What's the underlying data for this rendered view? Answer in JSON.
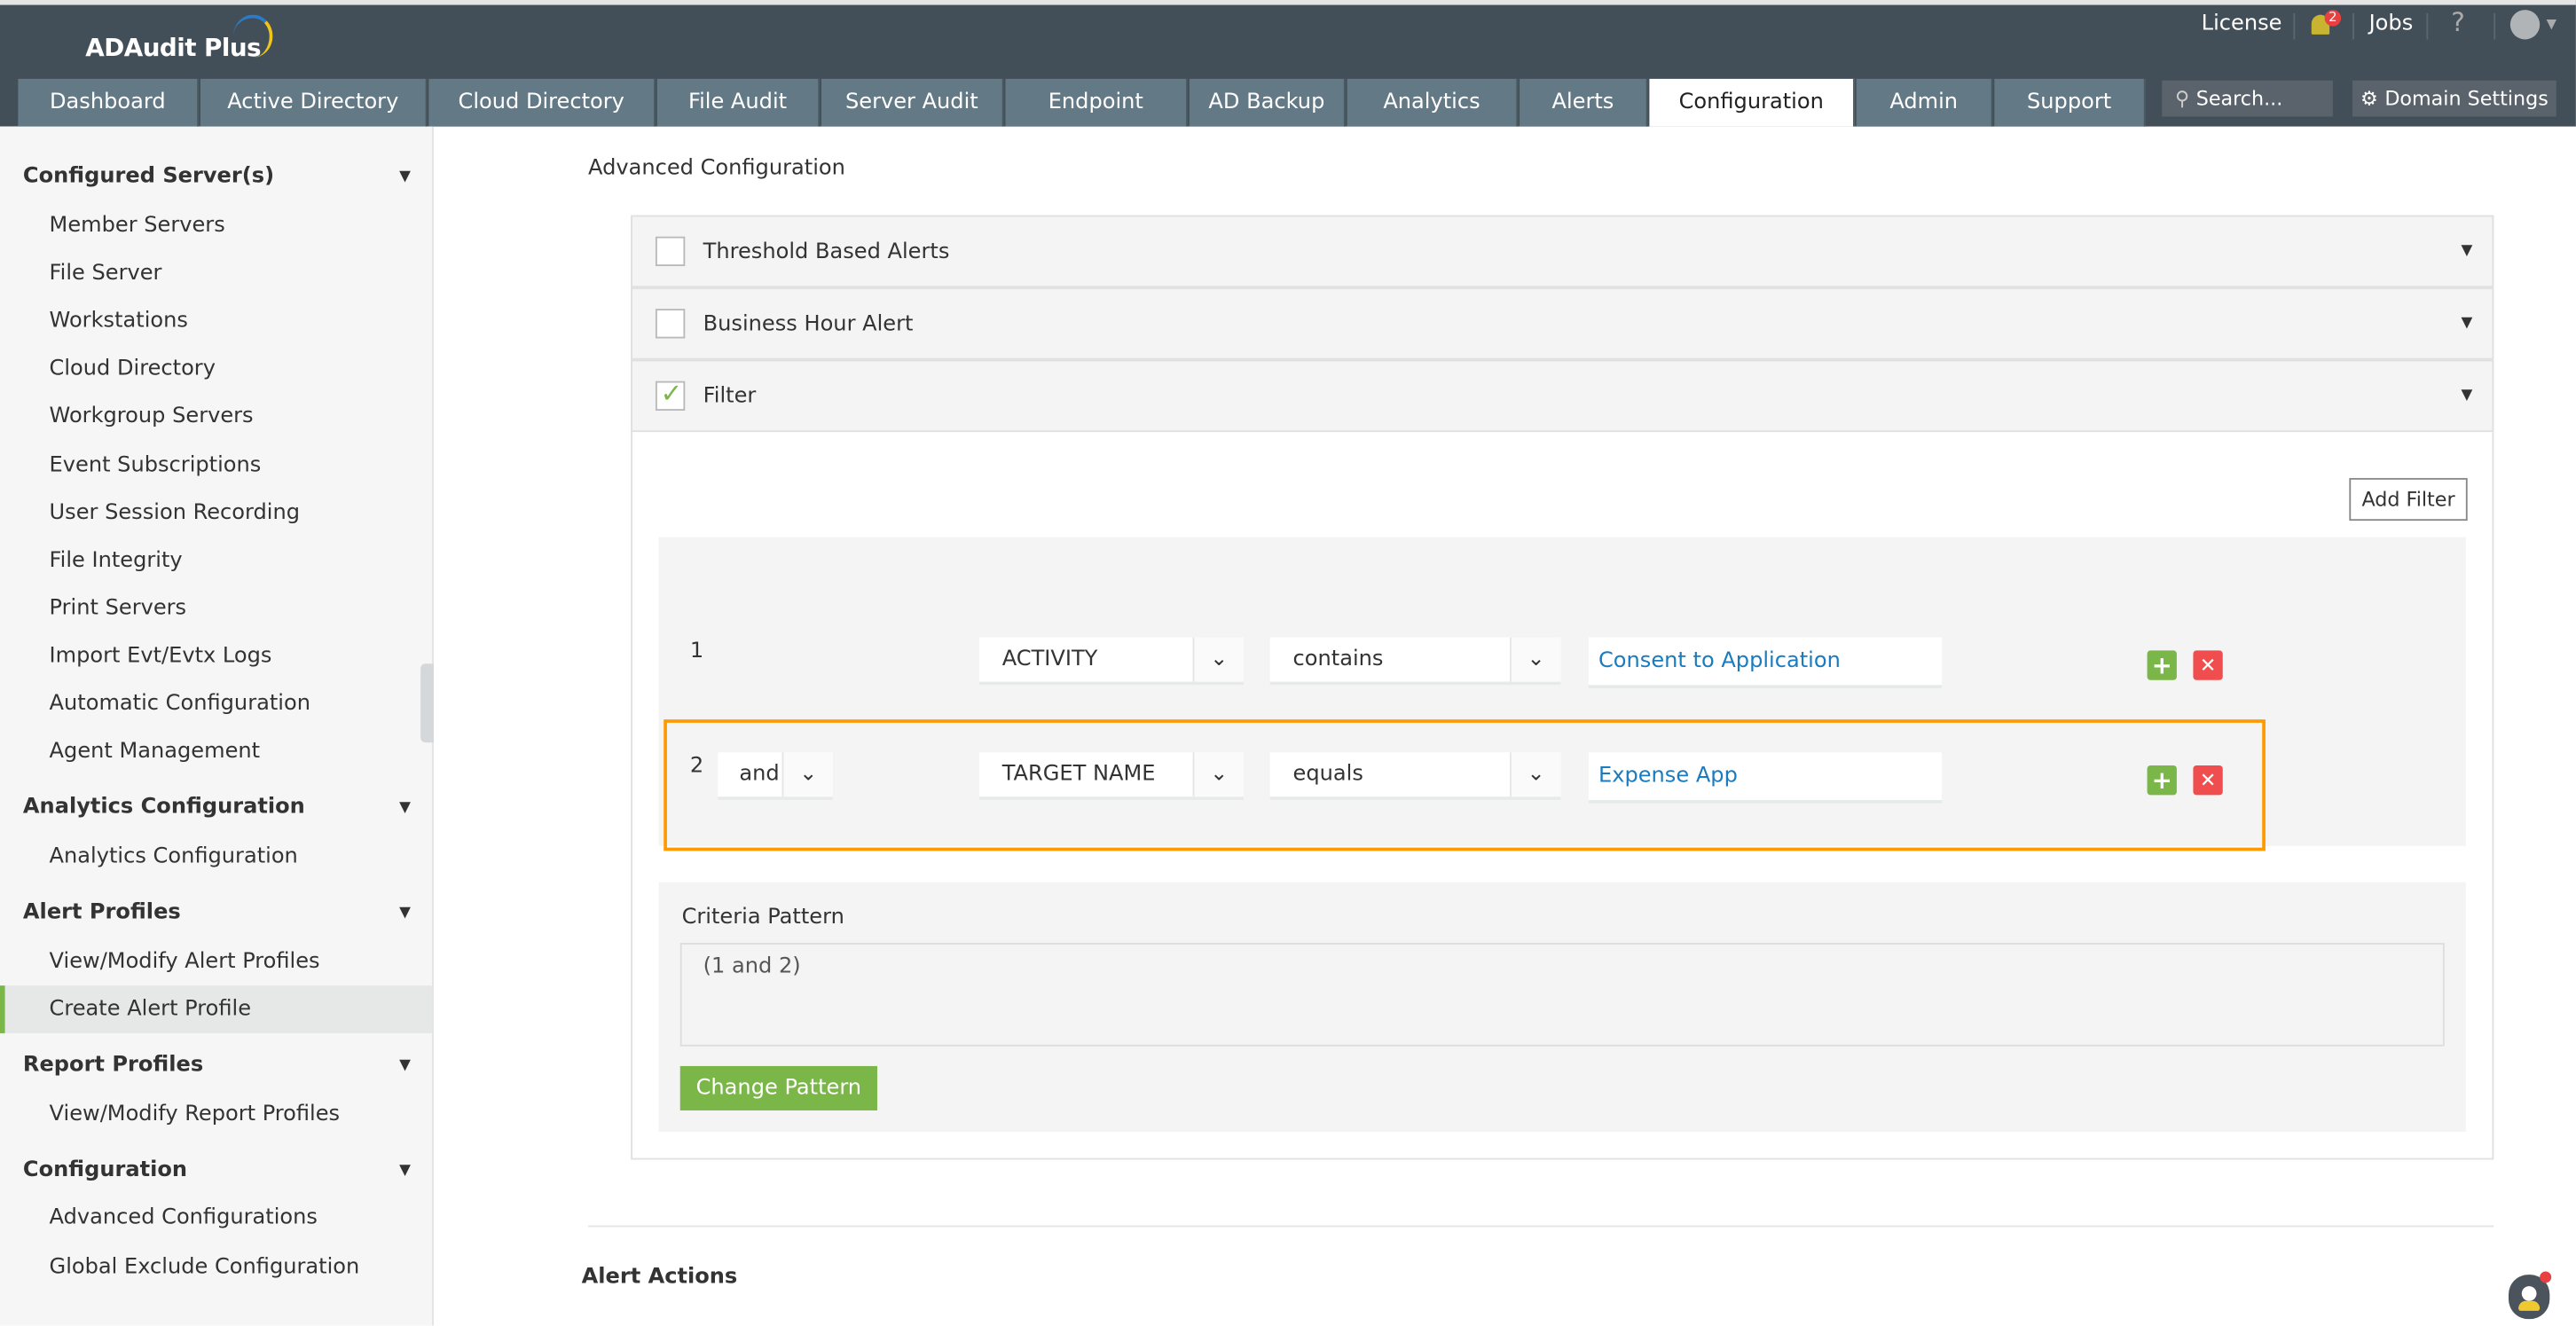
{
  "app": {
    "title": "ADAudit Plus"
  },
  "header": {
    "license": "License",
    "notifications_count": "2",
    "jobs": "Jobs",
    "help": "?",
    "search_placeholder": "Search...",
    "domain_settings": "Domain Settings"
  },
  "tabs": [
    {
      "label": "Dashboard"
    },
    {
      "label": "Active Directory"
    },
    {
      "label": "Cloud Directory"
    },
    {
      "label": "File Audit"
    },
    {
      "label": "Server Audit"
    },
    {
      "label": "Endpoint"
    },
    {
      "label": "AD Backup"
    },
    {
      "label": "Analytics"
    },
    {
      "label": "Alerts"
    },
    {
      "label": "Configuration",
      "active": true
    },
    {
      "label": "Admin"
    },
    {
      "label": "Support"
    }
  ],
  "sidebar": {
    "sections": [
      {
        "title": "Configured Server(s)",
        "items": [
          "Member Servers",
          "File Server",
          "Workstations",
          "Cloud Directory",
          "Workgroup Servers",
          "Event Subscriptions",
          "User Session Recording",
          "File Integrity",
          "Print Servers",
          "Import Evt/Evtx Logs",
          "Automatic Configuration",
          "Agent Management"
        ]
      },
      {
        "title": "Analytics Configuration",
        "items": [
          "Analytics Configuration"
        ]
      },
      {
        "title": "Alert Profiles",
        "items": [
          "View/Modify Alert Profiles",
          "Create Alert Profile"
        ]
      },
      {
        "title": "Report Profiles",
        "items": [
          "View/Modify Report Profiles"
        ]
      },
      {
        "title": "Configuration",
        "items": [
          "Advanced Configurations",
          "Global Exclude Configuration"
        ]
      }
    ],
    "active_item": "Create Alert Profile"
  },
  "main": {
    "title": "Advanced Configuration",
    "accordions": [
      {
        "label": "Threshold Based Alerts",
        "checked": false
      },
      {
        "label": "Business Hour Alert",
        "checked": false
      },
      {
        "label": "Filter",
        "checked": true
      }
    ],
    "add_filter": "Add Filter",
    "filters": [
      {
        "num": "1",
        "field": "ACTIVITY",
        "operator": "contains",
        "value": "Consent to Application"
      },
      {
        "num": "2",
        "conjunction": "and",
        "field": "TARGET NAME",
        "operator": "equals",
        "value": "Expense App",
        "highlighted": true
      }
    ],
    "criteria_label": "Criteria Pattern",
    "criteria_value": "(1 and 2)",
    "change_pattern": "Change Pattern",
    "alert_actions": "Alert Actions"
  },
  "colors": {
    "topbar": "#434f58",
    "tab": "#637986",
    "accent_green": "#7ab648",
    "highlight": "#ff9900",
    "remove_red": "#f04e4e",
    "link_blue": "#1a7bbf"
  }
}
